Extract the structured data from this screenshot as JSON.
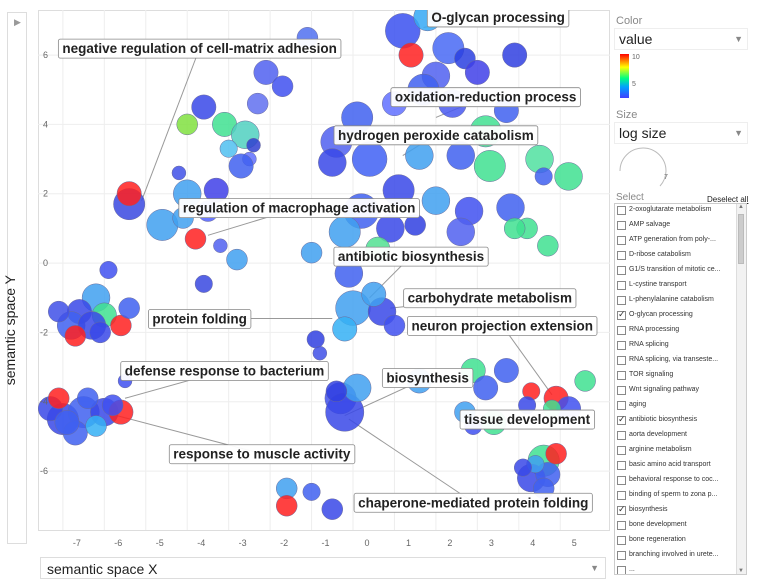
{
  "axes": {
    "x_label": "semantic space X",
    "y_label": "semantic space Y"
  },
  "panel": {
    "color_title": "Color",
    "color_value": "value",
    "legend_max": "10",
    "legend_mid": "5",
    "size_title": "Size",
    "size_value": "log size",
    "size_legend": "7",
    "select_title": "Select",
    "deselect_all": "Deselect all"
  },
  "terms": [
    {
      "label": "2-oxoglutarate metabolism",
      "checked": false
    },
    {
      "label": "AMP salvage",
      "checked": false
    },
    {
      "label": "ATP generation from poly-...",
      "checked": false
    },
    {
      "label": "D-ribose catabolism",
      "checked": false
    },
    {
      "label": "G1/S transition of mitotic ce...",
      "checked": false
    },
    {
      "label": "L-cystine transport",
      "checked": false
    },
    {
      "label": "L-phenylalanine catabolism",
      "checked": false
    },
    {
      "label": "O-glycan processing",
      "checked": true
    },
    {
      "label": "RNA processing",
      "checked": false
    },
    {
      "label": "RNA splicing",
      "checked": false
    },
    {
      "label": "RNA splicing, via transeste...",
      "checked": false
    },
    {
      "label": "TOR signaling",
      "checked": false
    },
    {
      "label": "Wnt signaling pathway",
      "checked": false
    },
    {
      "label": "aging",
      "checked": false
    },
    {
      "label": "antibiotic biosynthesis",
      "checked": true
    },
    {
      "label": "aorta development",
      "checked": false
    },
    {
      "label": "arginine metabolism",
      "checked": false
    },
    {
      "label": "basic amino acid transport",
      "checked": false
    },
    {
      "label": "behavioral response to coc...",
      "checked": false
    },
    {
      "label": "binding of sperm to zona p...",
      "checked": false
    },
    {
      "label": "biosynthesis",
      "checked": true
    },
    {
      "label": "bone development",
      "checked": false
    },
    {
      "label": "bone regeneration",
      "checked": false
    },
    {
      "label": "branching involved in urete...",
      "checked": false
    },
    {
      "label": "...",
      "checked": false
    }
  ],
  "chart_data": {
    "type": "scatter",
    "xlabel": "semantic space X",
    "ylabel": "semantic space Y",
    "xlim": [
      -7.6,
      6.2
    ],
    "ylim": [
      -7.7,
      7.3
    ],
    "x_ticks": [
      -7,
      -6,
      -5,
      -4,
      -3,
      -2,
      -1,
      0,
      1,
      2,
      3,
      4,
      5
    ],
    "y_ticks": [
      6,
      4,
      2,
      0,
      -2,
      -4,
      -6
    ],
    "grid": true,
    "color_scale": "value (blue low → red high)",
    "points": [
      [
        1.2,
        6.7,
        1.0,
        "#3a50f0"
      ],
      [
        1.8,
        7.1,
        0.8,
        "#35a8f5"
      ],
      [
        1.4,
        6.0,
        0.7,
        "#ff2020"
      ],
      [
        2.3,
        6.2,
        0.9,
        "#4868f5"
      ],
      [
        2.7,
        5.9,
        0.6,
        "#2a40e0"
      ],
      [
        2.0,
        5.4,
        0.8,
        "#5060f0"
      ],
      [
        3.0,
        5.5,
        0.7,
        "#4040e8"
      ],
      [
        3.9,
        6.0,
        0.7,
        "#3040e0"
      ],
      [
        -1.1,
        6.5,
        0.6,
        "#5070f0"
      ],
      [
        1.7,
        5.0,
        0.9,
        "#4060f0"
      ],
      [
        2.4,
        4.6,
        0.8,
        "#4858f0"
      ],
      [
        1.0,
        4.6,
        0.7,
        "#6070ff"
      ],
      [
        3.2,
        3.8,
        0.9,
        "#40e090"
      ],
      [
        3.7,
        4.4,
        0.7,
        "#4060f0"
      ],
      [
        0.1,
        4.2,
        0.9,
        "#4060f0"
      ],
      [
        -0.4,
        3.5,
        0.9,
        "#5060f0"
      ],
      [
        0.4,
        3.0,
        1.0,
        "#4060f5"
      ],
      [
        -0.5,
        2.9,
        0.8,
        "#3848e8"
      ],
      [
        1.6,
        3.1,
        0.8,
        "#40a0f0"
      ],
      [
        2.6,
        3.1,
        0.8,
        "#4060f0"
      ],
      [
        3.3,
        2.8,
        0.9,
        "#40e090"
      ],
      [
        4.5,
        3.0,
        0.8,
        "#50e0a0"
      ],
      [
        5.2,
        2.5,
        0.8,
        "#40e090"
      ],
      [
        4.6,
        2.5,
        0.5,
        "#4060f0"
      ],
      [
        -3.1,
        4.0,
        0.7,
        "#40e090"
      ],
      [
        -2.6,
        3.7,
        0.8,
        "#50d0c0"
      ],
      [
        -3.6,
        4.5,
        0.7,
        "#3848e8"
      ],
      [
        -4.0,
        4.0,
        0.6,
        "#80e040"
      ],
      [
        -2.1,
        5.5,
        0.7,
        "#5060f0"
      ],
      [
        -1.7,
        5.1,
        0.6,
        "#4050f0"
      ],
      [
        -2.3,
        4.6,
        0.6,
        "#6070f0"
      ],
      [
        -3.0,
        3.3,
        0.5,
        "#50c0f0"
      ],
      [
        -2.4,
        3.4,
        0.4,
        "#3040d0"
      ],
      [
        -4.2,
        2.6,
        0.4,
        "#4050e8"
      ],
      [
        -2.5,
        3.0,
        0.4,
        "#6070ff"
      ],
      [
        -4.0,
        2.0,
        0.8,
        "#40a0f0"
      ],
      [
        -3.3,
        2.1,
        0.7,
        "#4040e8"
      ],
      [
        -2.7,
        2.8,
        0.7,
        "#4060f0"
      ],
      [
        -5.4,
        1.7,
        0.9,
        "#3848e0"
      ],
      [
        -5.4,
        2.0,
        0.7,
        "#ff2020"
      ],
      [
        -4.6,
        1.1,
        0.9,
        "#40a0f0"
      ],
      [
        -3.8,
        0.7,
        0.6,
        "#ff2020"
      ],
      [
        -4.1,
        1.3,
        0.6,
        "#40a0f0"
      ],
      [
        -3.5,
        1.5,
        0.6,
        "#5060ff"
      ],
      [
        0.2,
        1.5,
        1.0,
        "#4060f0"
      ],
      [
        1.1,
        2.1,
        0.9,
        "#3848e8"
      ],
      [
        2.0,
        1.8,
        0.8,
        "#40a0f0"
      ],
      [
        2.8,
        1.5,
        0.8,
        "#4050f0"
      ],
      [
        3.8,
        1.6,
        0.8,
        "#4060f0"
      ],
      [
        4.2,
        1.0,
        0.6,
        "#40e090"
      ],
      [
        -0.2,
        0.9,
        0.9,
        "#40a0f0"
      ],
      [
        0.9,
        1.0,
        0.8,
        "#3848e8"
      ],
      [
        1.5,
        1.1,
        0.6,
        "#3040e0"
      ],
      [
        2.6,
        0.9,
        0.8,
        "#5060f0"
      ],
      [
        3.9,
        1.0,
        0.6,
        "#40e090"
      ],
      [
        4.7,
        0.5,
        0.6,
        "#40e090"
      ],
      [
        0.6,
        0.4,
        0.7,
        "#50e090"
      ],
      [
        -0.1,
        -0.3,
        0.8,
        "#4060f0"
      ],
      [
        -1.0,
        0.3,
        0.6,
        "#40a0f0"
      ],
      [
        -2.8,
        0.1,
        0.6,
        "#40a0f0"
      ],
      [
        -3.6,
        -0.6,
        0.5,
        "#3848e0"
      ],
      [
        -3.2,
        0.5,
        0.4,
        "#5060f0"
      ],
      [
        0.0,
        -1.3,
        1.0,
        "#40a0f0"
      ],
      [
        0.7,
        -1.4,
        0.8,
        "#3848e8"
      ],
      [
        1.0,
        -1.8,
        0.6,
        "#4050f0"
      ],
      [
        -0.2,
        -1.9,
        0.7,
        "#35b0f5"
      ],
      [
        0.5,
        -0.9,
        0.7,
        "#40a0f0"
      ],
      [
        -0.9,
        -2.2,
        0.5,
        "#3040e0"
      ],
      [
        -0.8,
        -2.6,
        0.4,
        "#4050e8"
      ],
      [
        -6.2,
        -1.0,
        0.8,
        "#40a0f0"
      ],
      [
        -6.6,
        -1.4,
        0.7,
        "#3848e8"
      ],
      [
        -6.0,
        -1.5,
        0.7,
        "#40e090"
      ],
      [
        -6.8,
        -1.8,
        0.8,
        "#4060f0"
      ],
      [
        -6.3,
        -1.8,
        0.8,
        "#3848e8"
      ],
      [
        -5.6,
        -1.8,
        0.6,
        "#ff2020"
      ],
      [
        -6.7,
        -2.1,
        0.6,
        "#ff2020"
      ],
      [
        -5.4,
        -1.3,
        0.6,
        "#4060f0"
      ],
      [
        -5.9,
        -0.2,
        0.5,
        "#4050f0"
      ],
      [
        -7.1,
        -1.4,
        0.6,
        "#4050e8"
      ],
      [
        -6.1,
        -2.0,
        0.6,
        "#3848e8"
      ],
      [
        -7.0,
        -4.5,
        0.9,
        "#3848e8"
      ],
      [
        -6.5,
        -4.3,
        0.9,
        "#4060f0"
      ],
      [
        -6.0,
        -4.3,
        0.8,
        "#3848e8"
      ],
      [
        -5.6,
        -4.3,
        0.7,
        "#ff2020"
      ],
      [
        -7.3,
        -4.2,
        0.7,
        "#3848e8"
      ],
      [
        -6.7,
        -4.9,
        0.7,
        "#4060f0"
      ],
      [
        -6.2,
        -4.7,
        0.6,
        "#35b0f5"
      ],
      [
        -5.8,
        -4.1,
        0.6,
        "#4050f0"
      ],
      [
        -7.1,
        -3.9,
        0.6,
        "#ff2020"
      ],
      [
        -6.4,
        -3.9,
        0.6,
        "#4060f0"
      ],
      [
        -5.5,
        -3.4,
        0.4,
        "#4050f0"
      ],
      [
        -6.9,
        -4.6,
        0.7,
        "#4060f0"
      ],
      [
        -0.3,
        -3.9,
        0.9,
        "#4050f0"
      ],
      [
        -0.2,
        -4.3,
        1.1,
        "#3848e8"
      ],
      [
        0.1,
        -3.6,
        0.8,
        "#40a0f0"
      ],
      [
        -0.4,
        -3.7,
        0.6,
        "#3040e0"
      ],
      [
        1.6,
        -3.4,
        0.7,
        "#40a0f0"
      ],
      [
        2.9,
        -3.1,
        0.7,
        "#40e090"
      ],
      [
        3.2,
        -3.6,
        0.7,
        "#4060f0"
      ],
      [
        3.7,
        -3.1,
        0.7,
        "#4060f0"
      ],
      [
        4.3,
        -3.7,
        0.5,
        "#ff2020"
      ],
      [
        4.9,
        -3.9,
        0.7,
        "#ff2020"
      ],
      [
        5.2,
        -4.2,
        0.7,
        "#4050f0"
      ],
      [
        5.6,
        -3.4,
        0.6,
        "#40e090"
      ],
      [
        4.8,
        -4.2,
        0.5,
        "#40e090"
      ],
      [
        2.7,
        -4.3,
        0.6,
        "#40a0f0"
      ],
      [
        2.9,
        -4.7,
        0.5,
        "#4050f0"
      ],
      [
        3.4,
        -4.6,
        0.7,
        "#40e090"
      ],
      [
        4.2,
        -4.1,
        0.5,
        "#3848e8"
      ],
      [
        4.6,
        -5.7,
        0.9,
        "#40e090"
      ],
      [
        4.3,
        -6.2,
        0.8,
        "#3848e8"
      ],
      [
        4.7,
        -6.1,
        0.7,
        "#4060f0"
      ],
      [
        4.9,
        -5.5,
        0.6,
        "#ff2020"
      ],
      [
        4.4,
        -5.8,
        0.5,
        "#40a0f0"
      ],
      [
        4.6,
        -6.5,
        0.6,
        "#4060f0"
      ],
      [
        4.1,
        -5.9,
        0.5,
        "#3848e8"
      ],
      [
        -1.6,
        -6.5,
        0.6,
        "#40a0f0"
      ],
      [
        -1.6,
        -7.0,
        0.6,
        "#ff2020"
      ],
      [
        -1.0,
        -6.6,
        0.5,
        "#4060f0"
      ],
      [
        -0.5,
        -7.1,
        0.6,
        "#3848e8"
      ]
    ],
    "labels": [
      {
        "text": "O-glycan processing",
        "x": 3.5,
        "y": 7.1,
        "anchor": [
          1.7,
          6.8
        ]
      },
      {
        "text": "negative regulation of cell-matrix adhesion",
        "x": -3.7,
        "y": 6.2,
        "anchor": [
          -5.1,
          1.8
        ]
      },
      {
        "text": "oxidation-reduction process",
        "x": 3.2,
        "y": 4.8,
        "anchor": [
          2.0,
          4.2
        ]
      },
      {
        "text": "hydrogen peroxide catabolism",
        "x": 2.0,
        "y": 3.7,
        "anchor": [
          1.2,
          3.1
        ]
      },
      {
        "text": "regulation of macrophage activation",
        "x": -1.3,
        "y": 1.6,
        "anchor": [
          -3.5,
          0.8
        ]
      },
      {
        "text": "antibiotic biosynthesis",
        "x": 1.4,
        "y": 0.2,
        "anchor": [
          0.4,
          -1.0
        ]
      },
      {
        "text": "carbohydrate metabolism",
        "x": 3.3,
        "y": -1.0,
        "anchor": [
          0.9,
          -1.3
        ]
      },
      {
        "text": "protein folding",
        "x": -3.7,
        "y": -1.6,
        "anchor": [
          -0.5,
          -1.6
        ]
      },
      {
        "text": "neuron projection extension",
        "x": 3.6,
        "y": -1.8,
        "anchor": [
          4.8,
          -3.8
        ]
      },
      {
        "text": "defense response to bacterium",
        "x": -3.1,
        "y": -3.1,
        "anchor": [
          -5.5,
          -3.9
        ]
      },
      {
        "text": "biosynthesis",
        "x": 1.8,
        "y": -3.3,
        "anchor": [
          -0.2,
          -4.4
        ]
      },
      {
        "text": "tissue development",
        "x": 4.2,
        "y": -4.5,
        "anchor": [
          4.8,
          -4.2
        ]
      },
      {
        "text": "response to muscle activity",
        "x": -2.2,
        "y": -5.5,
        "anchor": [
          -5.7,
          -4.4
        ]
      },
      {
        "text": "chaperone-mediated protein folding",
        "x": 2.9,
        "y": -6.9,
        "anchor": [
          -0.1,
          -4.5
        ]
      }
    ]
  }
}
